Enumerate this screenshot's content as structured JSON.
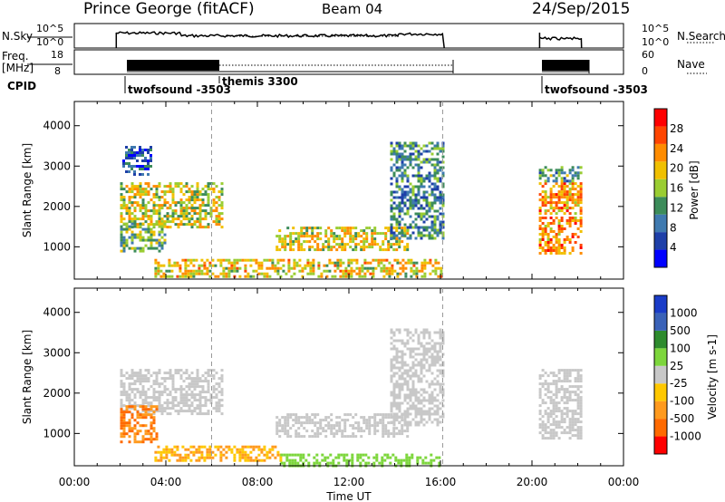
{
  "header": {
    "station": "Prince George (fitACF)",
    "beam": "Beam 04",
    "date": "24/Sep/2015"
  },
  "colors": {
    "power_scale": [
      "#0000ff",
      "#1e3fa8",
      "#3f7ab0",
      "#3c8c5a",
      "#9acd32",
      "#f0c000",
      "#ff8c00",
      "#ff4500",
      "#ff0000"
    ],
    "velocity_scale": [
      "#ff0000",
      "#ff6a00",
      "#ff9a1e",
      "#ffc800",
      "#c8c8c8",
      "#7dd63c",
      "#2e8b2e",
      "#3a62b8",
      "#1a3cc8"
    ]
  },
  "chart_data": [
    {
      "type": "line",
      "name": "noise-panel",
      "left_label": "N.Sky",
      "right_label": "N.Search",
      "y_ticks": [
        "10^5",
        "10^0"
      ],
      "right_ticks": [
        "10^5",
        "10^0"
      ],
      "segments": [
        {
          "x_range": [
            "01:50",
            "16:10"
          ]
        },
        {
          "x_range": [
            "20:20",
            "22:10"
          ]
        }
      ]
    },
    {
      "type": "line",
      "name": "freq-panel",
      "left_label": "Freq.",
      "left_unit": "[MHz]",
      "y_ticks": [
        18,
        8
      ],
      "right_label": "Nave",
      "right_ticks": [
        60,
        0
      ],
      "segments": [
        {
          "x_range": [
            "01:50",
            "16:10"
          ]
        },
        {
          "x_range": [
            "20:20",
            "22:10"
          ]
        }
      ]
    },
    {
      "type": "table",
      "name": "cpid",
      "label": "CPID",
      "programs": [
        {
          "name": "twofsound -3503",
          "start": "01:50"
        },
        {
          "name": "themis 3300",
          "start": "06:00"
        },
        {
          "name": "twofsound -3503",
          "start": "20:20"
        }
      ]
    },
    {
      "type": "heatmap",
      "name": "power-panel",
      "ylabel": "Slant Range [km]",
      "y_ticks": [
        1000,
        2000,
        3000,
        4000
      ],
      "x_range": [
        0,
        24
      ],
      "ylim": [
        200,
        4600
      ],
      "colorbar": {
        "label": "Power [dB]",
        "ticks": [
          4,
          8,
          12,
          16,
          20,
          24,
          28
        ]
      },
      "echo_regions": [
        {
          "t0": 2.0,
          "t1": 6.4,
          "r0": 1500,
          "r1": 2600,
          "level": 20
        },
        {
          "t0": 2.0,
          "t1": 4.0,
          "r0": 900,
          "r1": 1600,
          "level": 16
        },
        {
          "t0": 2.1,
          "t1": 3.3,
          "r0": 2800,
          "r1": 3500,
          "level": 8
        },
        {
          "t0": 3.5,
          "t1": 16.0,
          "r0": 250,
          "r1": 700,
          "level": 22
        },
        {
          "t0": 8.8,
          "t1": 14.6,
          "r0": 950,
          "r1": 1500,
          "level": 21
        },
        {
          "t0": 13.8,
          "t1": 16.1,
          "r0": 1200,
          "r1": 3600,
          "level": 12
        },
        {
          "t0": 20.3,
          "t1": 22.1,
          "r0": 1800,
          "r1": 2600,
          "level": 26
        },
        {
          "t0": 20.3,
          "t1": 22.1,
          "r0": 850,
          "r1": 1750,
          "level": 26
        },
        {
          "t0": 20.3,
          "t1": 22.1,
          "r0": 2600,
          "r1": 3000,
          "level": 14
        }
      ]
    },
    {
      "type": "heatmap",
      "name": "velocity-panel",
      "ylabel": "Slant Range [km]",
      "xlabel": "Time UT",
      "x_ticks": [
        "00:00",
        "04:00",
        "08:00",
        "12:00",
        "16:00",
        "20:00",
        "00:00"
      ],
      "y_ticks": [
        1000,
        2000,
        3000,
        4000
      ],
      "x_range": [
        0,
        24
      ],
      "ylim": [
        200,
        4600
      ],
      "colorbar": {
        "label": "Velocity",
        "unit": "[m s-1]",
        "ticks": [
          1000,
          500,
          100,
          25,
          -25,
          -100,
          -500,
          -1000
        ]
      },
      "echo_regions": [
        {
          "t0": 2.0,
          "t1": 6.4,
          "r0": 1500,
          "r1": 2600,
          "level": 0
        },
        {
          "t0": 2.0,
          "t1": 3.6,
          "r0": 800,
          "r1": 1700,
          "level": -500
        },
        {
          "t0": 3.5,
          "t1": 9.0,
          "r0": 300,
          "r1": 700,
          "level": -100
        },
        {
          "t0": 9.0,
          "t1": 16.0,
          "r0": 200,
          "r1": 500,
          "level": 60
        },
        {
          "t0": 8.8,
          "t1": 14.6,
          "r0": 950,
          "r1": 1500,
          "level": 0
        },
        {
          "t0": 13.8,
          "t1": 16.1,
          "r0": 1200,
          "r1": 3600,
          "level": 0
        },
        {
          "t0": 20.3,
          "t1": 22.1,
          "r0": 850,
          "r1": 2600,
          "level": 0
        }
      ]
    }
  ]
}
